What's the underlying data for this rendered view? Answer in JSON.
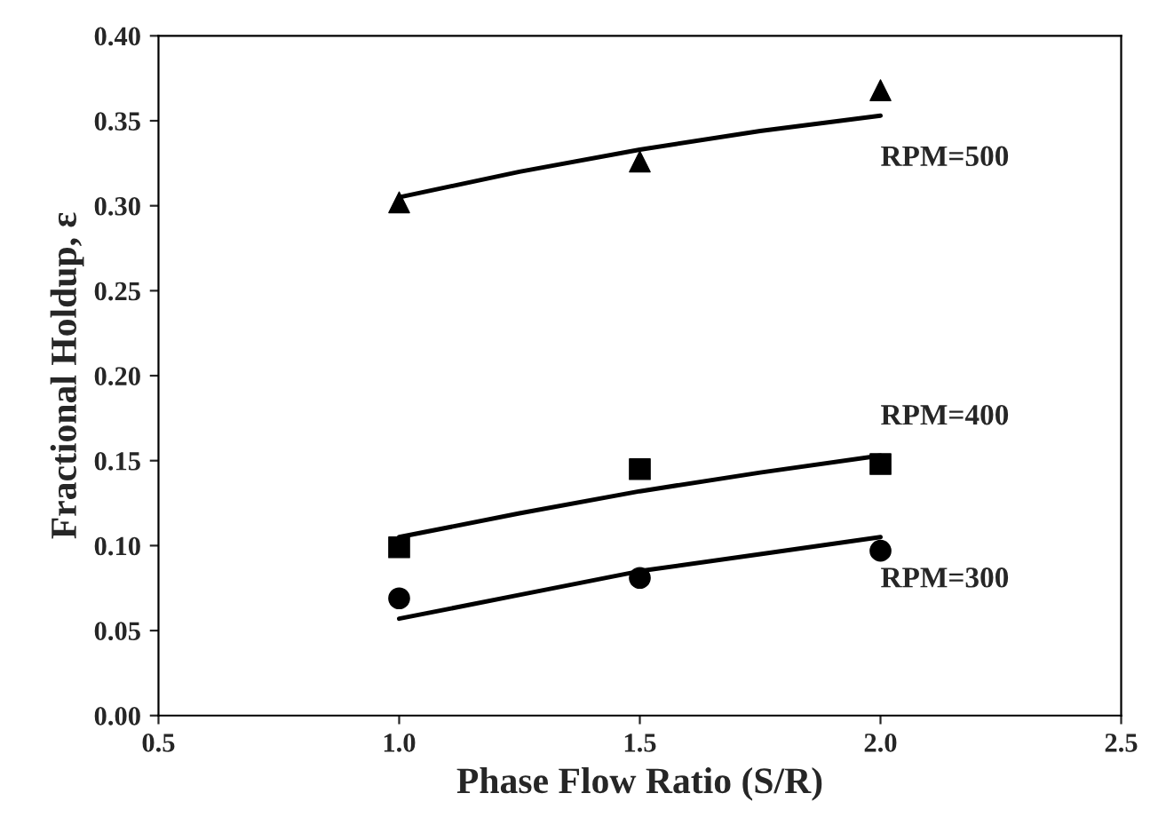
{
  "chart_data": {
    "type": "scatter",
    "xlabel": "Phase Flow Ratio (S/R)",
    "ylabel": "Fractional Holdup, ε",
    "xlim": [
      0.5,
      2.5
    ],
    "xticks": [
      {
        "value": 0.5,
        "label": "0.5"
      },
      {
        "value": 1.0,
        "label": "1.0"
      },
      {
        "value": 1.5,
        "label": "1.5"
      },
      {
        "value": 2.0,
        "label": "2.0"
      },
      {
        "value": 2.5,
        "label": "2.5"
      }
    ],
    "ylim": [
      0,
      0.4
    ],
    "yticks": [
      {
        "value": 0,
        "label": "0.00"
      },
      {
        "value": 0.05,
        "label": "0.05"
      },
      {
        "value": 0.1,
        "label": "0.10"
      },
      {
        "value": 0.15,
        "label": "0.15"
      },
      {
        "value": 0.2,
        "label": "0.20"
      },
      {
        "value": 0.25,
        "label": "0.25"
      },
      {
        "value": 0.3,
        "label": "0.30"
      },
      {
        "value": 0.35,
        "label": "0.35"
      },
      {
        "value": 0.4,
        "label": "0.40"
      }
    ],
    "grid": false,
    "legend": false,
    "series": [
      {
        "marker": "triangle",
        "color": "#000000",
        "x": [
          1.0,
          1.5,
          2.0
        ],
        "values": [
          0.302,
          0.326,
          0.368
        ]
      },
      {
        "type": "line",
        "name": "RPM=500",
        "color": "#000000",
        "line_style": "solid",
        "x": [
          1.0,
          1.25,
          1.5,
          1.75,
          2.0
        ],
        "values": [
          0.305,
          0.32,
          0.333,
          0.344,
          0.353
        ]
      },
      {
        "marker": "square",
        "color": "#000000",
        "x": [
          1.0,
          1.5,
          2.0
        ],
        "values": [
          0.099,
          0.145,
          0.148
        ]
      },
      {
        "type": "line",
        "name": "RPM=400",
        "color": "#000000",
        "line_style": "solid",
        "x": [
          1.0,
          1.25,
          1.5,
          1.75,
          2.0
        ],
        "values": [
          0.105,
          0.119,
          0.132,
          0.143,
          0.153
        ]
      },
      {
        "marker": "circle",
        "color": "#000000",
        "x": [
          1.0,
          1.5,
          2.0
        ],
        "values": [
          0.069,
          0.081,
          0.097
        ]
      },
      {
        "type": "line",
        "name": "RPM=300",
        "color": "#000000",
        "line_style": "solid",
        "x": [
          1.0,
          1.25,
          1.5,
          1.75,
          2.0
        ],
        "values": [
          0.057,
          0.071,
          0.085,
          0.095,
          0.105
        ]
      }
    ]
  }
}
